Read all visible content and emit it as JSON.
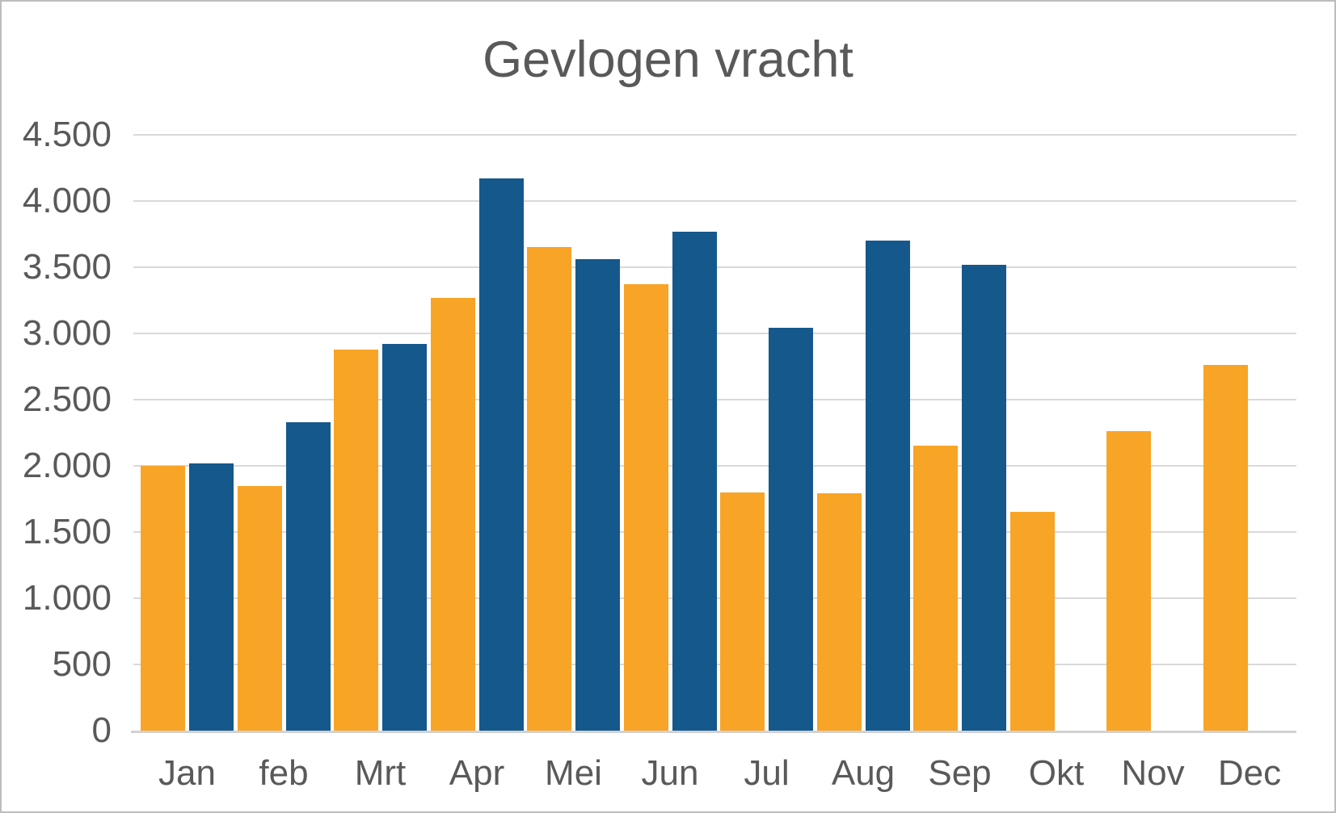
{
  "title": "Gevlogen vracht",
  "colors": {
    "orange": "#F8A427",
    "blue": "#15588C",
    "grid": "#D9D9D9",
    "baseline": "#D2D2D2",
    "text": "#595959",
    "background": "#FFFFFF",
    "frame_border": "#BDBDBD"
  },
  "chart_data": {
    "type": "bar",
    "title": "Gevlogen vracht",
    "categories": [
      "Jan",
      "feb",
      "Mrt",
      "Apr",
      "Mei",
      "Jun",
      "Jul",
      "Aug",
      "Sep",
      "Okt",
      "Nov",
      "Dec"
    ],
    "series": [
      {
        "name": "orange-series",
        "color": "#F8A427",
        "values": [
          2000,
          1850,
          2880,
          3270,
          3650,
          3370,
          1800,
          1790,
          2150,
          1650,
          2260,
          2760
        ]
      },
      {
        "name": "blue-series",
        "color": "#15588C",
        "values": [
          2020,
          2330,
          2920,
          4170,
          3560,
          3770,
          3040,
          3700,
          3520,
          null,
          null,
          null
        ]
      }
    ],
    "xlabel": "",
    "ylabel": "",
    "ylim": [
      0,
      4500
    ],
    "ytick_interval": 500,
    "ytick_labels": [
      "0",
      "500",
      "1.000",
      "1.500",
      "2.000",
      "2.500",
      "3.000",
      "3.500",
      "4.000",
      "4.500"
    ],
    "grid": true,
    "legend": "none"
  }
}
